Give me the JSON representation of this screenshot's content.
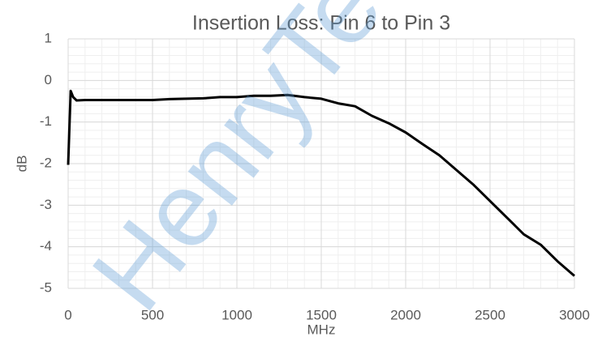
{
  "chart_data": {
    "type": "line",
    "title": "Insertion Loss: Pin 6 to Pin 3",
    "x_label": "MHz",
    "y_label": "dB",
    "watermark": "HenryTe",
    "x": [
      0,
      15,
      30,
      50,
      100,
      200,
      300,
      400,
      500,
      600,
      700,
      800,
      900,
      1000,
      1100,
      1200,
      1300,
      1400,
      1500,
      1600,
      1700,
      1800,
      1900,
      2000,
      2100,
      2200,
      2300,
      2400,
      2500,
      2600,
      2700,
      2800,
      2900,
      3000
    ],
    "values": [
      -2.03,
      -0.25,
      -0.4,
      -0.48,
      -0.47,
      -0.47,
      -0.47,
      -0.47,
      -0.47,
      -0.45,
      -0.44,
      -0.43,
      -0.4,
      -0.4,
      -0.37,
      -0.37,
      -0.35,
      -0.4,
      -0.44,
      -0.55,
      -0.62,
      -0.85,
      -1.03,
      -1.25,
      -1.53,
      -1.8,
      -2.15,
      -2.5,
      -2.9,
      -3.3,
      -3.7,
      -3.95,
      -4.35,
      -4.7
    ],
    "color": "#000000",
    "xlim": [
      0,
      3000
    ],
    "xticks": [
      0,
      500,
      1000,
      1500,
      2000,
      2500,
      3000
    ],
    "ylim": [
      -5,
      1
    ],
    "yticks": [
      -5,
      -4,
      -3,
      -2,
      -1,
      0,
      1
    ],
    "grid": true,
    "x_minor_step": 100,
    "y_minor_step": 0.2
  }
}
